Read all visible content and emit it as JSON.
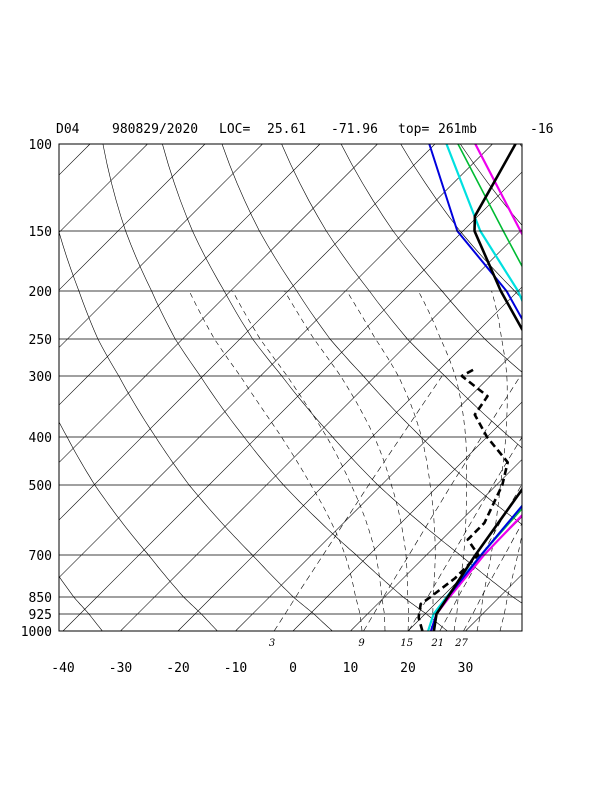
{
  "header": {
    "station": "D04",
    "datetime": "980829/2020",
    "loc_label": "LOC=",
    "lat": "25.61",
    "lon": "-71.96",
    "top_label": "top=",
    "top_value": "261mb",
    "extra": "-16"
  },
  "chart_data": {
    "type": "line",
    "plot": "skew-T log-P",
    "pressure_levels": [
      100,
      150,
      200,
      250,
      300,
      400,
      500,
      700,
      850,
      925,
      1000
    ],
    "pressure_labels": [
      "100",
      "150",
      "200",
      "250",
      "300",
      "400",
      "500",
      "700",
      "850",
      "925",
      "1000"
    ],
    "temperature_ticks": [
      -40,
      -30,
      -20,
      -10,
      0,
      10,
      20,
      30
    ],
    "temperature_labels": [
      "-40",
      "-30",
      "-20",
      "-10",
      "0",
      "10",
      "20",
      "30"
    ],
    "mixing_ratio_labels": [
      "3",
      "9",
      "15",
      "21",
      "27"
    ],
    "xlim": [
      -40,
      40
    ],
    "ylim": [
      1000,
      100
    ],
    "colors": {
      "temperature": "#000000",
      "dewpoint": "#000000",
      "parcel_blue": "#0000dd",
      "parcel_cyan": "#00e0e0",
      "parcel_green": "#00bb33",
      "parcel_magenta": "#ee00ee",
      "grid": "#000000"
    },
    "series": [
      {
        "id": "parcel_magenta",
        "style": "magenta",
        "points": [
          [
            1000,
            24
          ],
          [
            925,
            22
          ],
          [
            850,
            21.3
          ],
          [
            700,
            20
          ],
          [
            500,
            19.5
          ],
          [
            400,
            15.5
          ],
          [
            300,
            6
          ],
          [
            250,
            -2
          ],
          [
            200,
            -14
          ],
          [
            150,
            -30
          ],
          [
            100,
            -53
          ]
        ]
      },
      {
        "id": "parcel_green",
        "style": "green",
        "points": [
          [
            1000,
            23.5
          ],
          [
            925,
            21.5
          ],
          [
            850,
            20.8
          ],
          [
            700,
            19.5
          ],
          [
            550,
            18.5
          ],
          [
            500,
            19.5
          ],
          [
            450,
            17.5
          ],
          [
            400,
            12
          ],
          [
            300,
            3
          ],
          [
            250,
            -5
          ],
          [
            200,
            -17
          ],
          [
            150,
            -33
          ],
          [
            100,
            -56
          ]
        ]
      },
      {
        "id": "parcel_cyan",
        "style": "cyan",
        "points": [
          [
            1000,
            23.5
          ],
          [
            925,
            21.5
          ],
          [
            850,
            20.8
          ],
          [
            700,
            19.5
          ],
          [
            500,
            17.5
          ],
          [
            400,
            12
          ],
          [
            300,
            1
          ],
          [
            250,
            -8
          ],
          [
            200,
            -20
          ],
          [
            150,
            -37
          ],
          [
            100,
            -58
          ]
        ]
      },
      {
        "id": "parcel_blue",
        "style": "blue",
        "points": [
          [
            1000,
            24
          ],
          [
            925,
            22
          ],
          [
            850,
            21
          ],
          [
            700,
            19.5
          ],
          [
            500,
            17.5
          ],
          [
            400,
            11.5
          ],
          [
            300,
            0
          ],
          [
            250,
            -9
          ],
          [
            200,
            -22
          ],
          [
            150,
            -41
          ],
          [
            100,
            -61
          ]
        ]
      },
      {
        "id": "temperature",
        "style": "temperature",
        "points": [
          [
            1000,
            24.5
          ],
          [
            925,
            22
          ],
          [
            850,
            21
          ],
          [
            700,
            18.5
          ],
          [
            500,
            15
          ],
          [
            400,
            10
          ],
          [
            300,
            -1
          ],
          [
            250,
            -10
          ],
          [
            200,
            -23
          ],
          [
            150,
            -38
          ],
          [
            140,
            -40.5
          ],
          [
            120,
            -43
          ],
          [
            100,
            -46
          ]
        ]
      },
      {
        "id": "dewpoint",
        "style": "dewpoint",
        "points": [
          [
            1000,
            22.5
          ],
          [
            940,
            19.5
          ],
          [
            880,
            17.5
          ],
          [
            850,
            18
          ],
          [
            780,
            19
          ],
          [
            700,
            19
          ],
          [
            650,
            14.5
          ],
          [
            600,
            14.5
          ],
          [
            500,
            11
          ],
          [
            450,
            8
          ],
          [
            400,
            0
          ],
          [
            360,
            -6
          ],
          [
            330,
            -7
          ],
          [
            300,
            -15
          ],
          [
            290,
            -14
          ]
        ]
      }
    ],
    "grid": "on",
    "reference_lines": [
      "isobars",
      "skewed isotherms",
      "dry adiabats",
      "moist adiabats",
      "mixing ratio lines"
    ]
  }
}
